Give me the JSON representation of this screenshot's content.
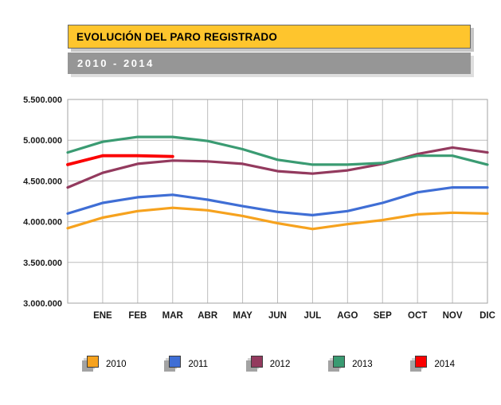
{
  "header": {
    "title": "EVOLUCIÓN DEL PARO REGISTRADO",
    "subtitle": "2010 - 2014"
  },
  "colors": {
    "title_bg": "#FEC52D",
    "title_border": "#666666",
    "subtitle_bg": "#969696",
    "subtitle_text": "#FFFFFF",
    "gridline": "#BDBDBD",
    "plot_frame": "#A3A3A3",
    "axis_label": "#1A1A1A",
    "legend_shadow": "#A3A3A3"
  },
  "chart_data": {
    "type": "line",
    "title": "EVOLUCIÓN DEL PARO REGISTRADO",
    "subtitle": "2010 - 2014",
    "categories": [
      "ENE",
      "FEB",
      "MAR",
      "ABR",
      "MAY",
      "JUN",
      "JUL",
      "AGO",
      "SEP",
      "OCT",
      "NOV",
      "DIC"
    ],
    "xlabel": "",
    "ylabel": "",
    "ylim": [
      3000000,
      5500000
    ],
    "ytick_step": 500000,
    "ytick_labels": [
      "3.000.000",
      "3.500.000",
      "4.000.000",
      "4.500.000",
      "5.000.000",
      "5.500.000"
    ],
    "grid": true,
    "legend_position": "bottom",
    "note": "Each series begins at the y-axis with the previous December value, then runs ENE-DIC; the 2014 series ends at MAR.",
    "series": [
      {
        "name": "2010",
        "color": "#F6A21E",
        "stroke_width": 3.2,
        "start_value": 3920000,
        "values": [
          4050000,
          4130000,
          4170000,
          4140000,
          4070000,
          3980000,
          3910000,
          3970000,
          4020000,
          4090000,
          4110000,
          4100000
        ]
      },
      {
        "name": "2011",
        "color": "#3F6ED5",
        "stroke_width": 3.2,
        "start_value": 4100000,
        "values": [
          4230000,
          4300000,
          4330000,
          4270000,
          4190000,
          4120000,
          4080000,
          4130000,
          4230000,
          4360000,
          4420000,
          4420000
        ]
      },
      {
        "name": "2012",
        "color": "#933A5E",
        "stroke_width": 3.2,
        "start_value": 4420000,
        "values": [
          4600000,
          4710000,
          4750000,
          4740000,
          4710000,
          4620000,
          4590000,
          4630000,
          4710000,
          4830000,
          4910000,
          4850000
        ]
      },
      {
        "name": "2013",
        "color": "#3A9B72",
        "stroke_width": 3.2,
        "start_value": 4850000,
        "values": [
          4980000,
          5040000,
          5040000,
          4990000,
          4890000,
          4760000,
          4700000,
          4700000,
          4720000,
          4810000,
          4810000,
          4700000
        ]
      },
      {
        "name": "2014",
        "color": "#FB0000",
        "stroke_width": 3.8,
        "start_value": 4700000,
        "values": [
          4810000,
          4810000,
          4800000
        ]
      }
    ],
    "legend": [
      "2010",
      "2011",
      "2012",
      "2013",
      "2014"
    ]
  }
}
